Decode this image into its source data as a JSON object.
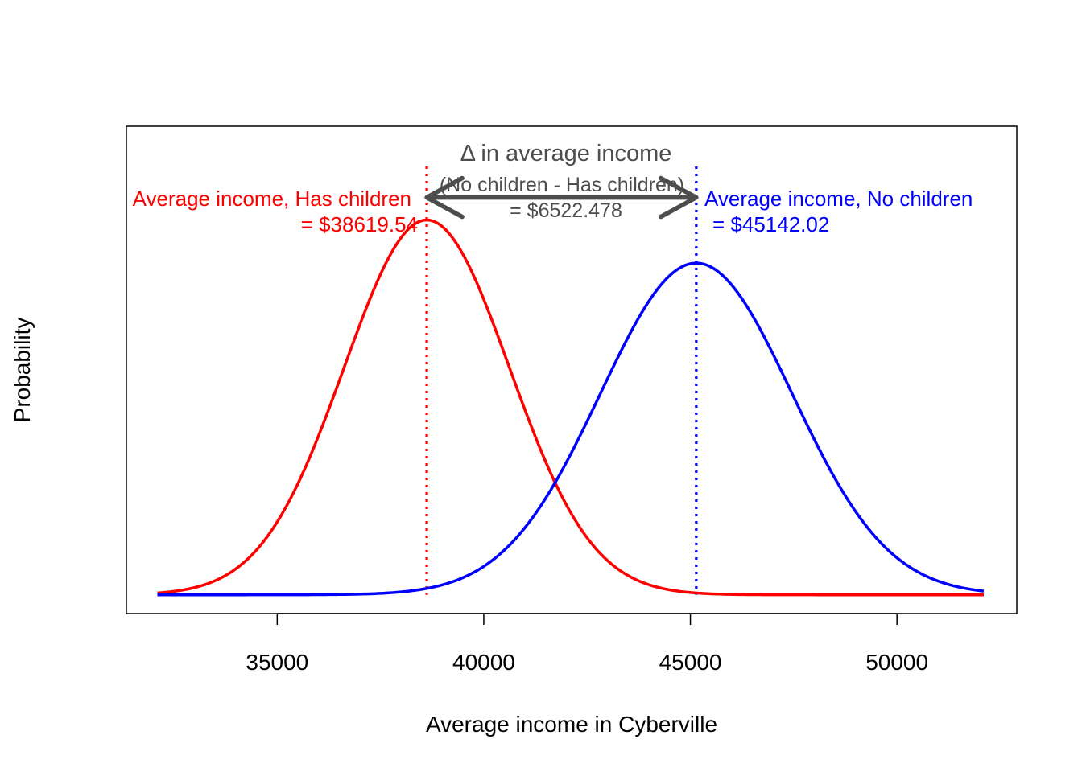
{
  "chart_data": {
    "type": "line",
    "xlabel": "Average income in Cyberville",
    "ylabel": "Probability",
    "xlim": [
      31350,
      52900
    ],
    "ylim": [
      -0.05,
      1.25
    ],
    "x_ticks": [
      35000,
      40000,
      45000,
      50000
    ],
    "y_ticks_shown": false,
    "grid": false,
    "legend": "none",
    "x_range": [
      32100,
      52100
    ],
    "series": [
      {
        "key": "has_children",
        "color": "#ff0000",
        "mean": 38619.54,
        "sd": 2000,
        "peak": 1.0
      },
      {
        "key": "no_children",
        "color": "#0000ff",
        "mean": 45142.02,
        "sd": 2320,
        "peak": 0.885
      }
    ],
    "vlines": [
      {
        "x": 38619.54,
        "color": "#ff0000",
        "style": "dotted"
      },
      {
        "x": 45142.02,
        "color": "#0000ff",
        "style": "dotted"
      }
    ],
    "arrow": {
      "from": 38619.54,
      "to": 45142.02,
      "y": 1.06,
      "color": "#4d4d4d"
    },
    "annotations": {
      "has_children_line1": "Average income, Has children",
      "has_children_line2": "= $38619.54",
      "no_children_line1": "Average income, No children",
      "no_children_line2": "= $45142.02",
      "diff_title": "Δ in average income",
      "diff_sub": "(No children - Has children)",
      "diff_value": "= $6522.478"
    }
  }
}
